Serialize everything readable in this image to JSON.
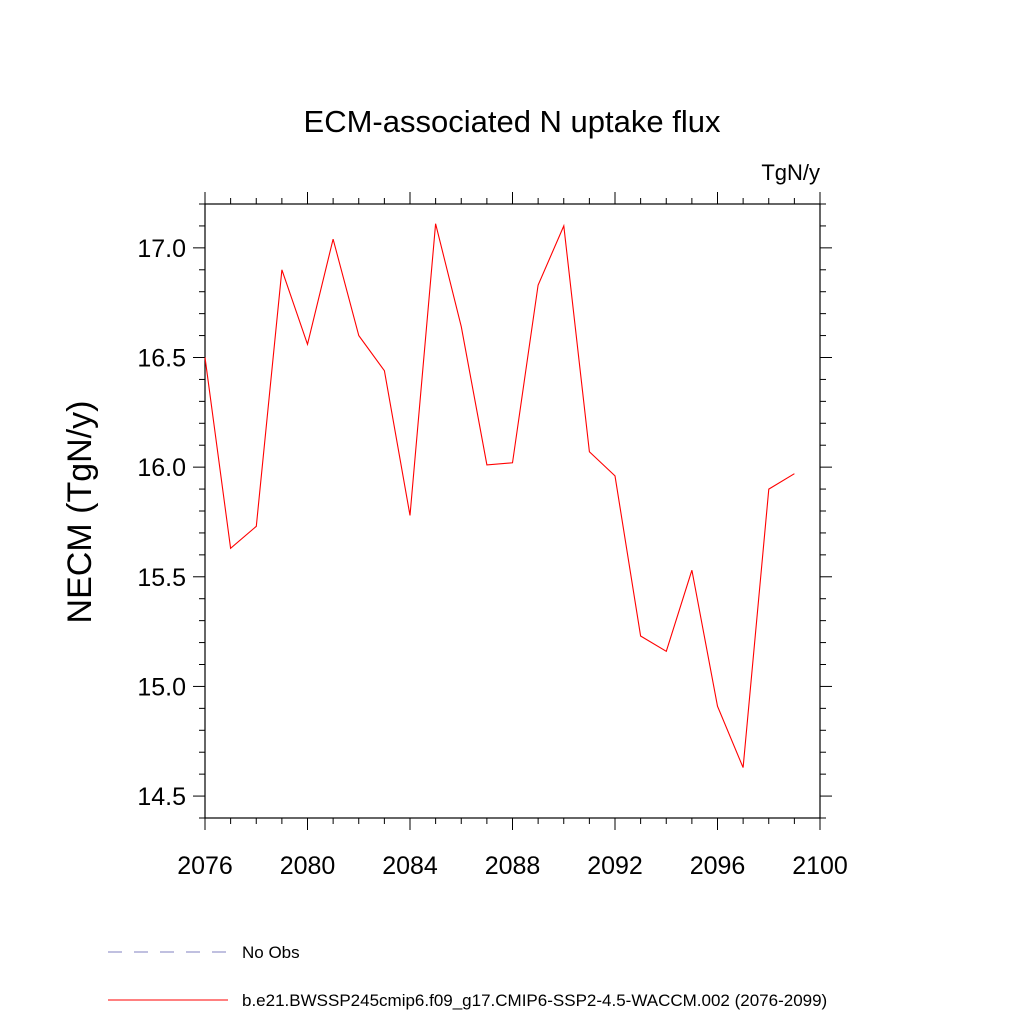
{
  "chart_data": {
    "type": "line",
    "title": "ECM-associated N uptake flux",
    "units_label": "TgN/y",
    "ylabel": "NECM  (TgN/y)",
    "xlabel": "",
    "xlim": [
      2076,
      2100
    ],
    "ylim": [
      14.4,
      17.2
    ],
    "x_ticks": [
      2076,
      2080,
      2084,
      2088,
      2092,
      2096,
      2100
    ],
    "y_ticks": [
      14.5,
      15.0,
      15.5,
      16.0,
      16.5,
      17.0
    ],
    "y_tick_labels": [
      "14.5",
      "15.0",
      "15.5",
      "16.0",
      "16.5",
      "17.0"
    ],
    "grid": false,
    "series": [
      {
        "name": "b.e21.BWSSP245cmip6.f09_g17.CMIP6-SSP2-4.5-WACCM.002 (2076-2099)",
        "color": "#ff0000",
        "x": [
          2076,
          2077,
          2078,
          2079,
          2080,
          2081,
          2082,
          2083,
          2084,
          2085,
          2086,
          2087,
          2088,
          2089,
          2090,
          2091,
          2092,
          2093,
          2094,
          2095,
          2096,
          2097,
          2098,
          2099
        ],
        "values": [
          16.5,
          15.63,
          15.73,
          16.9,
          16.56,
          17.04,
          16.6,
          16.44,
          15.78,
          17.11,
          16.64,
          16.01,
          16.02,
          16.83,
          17.1,
          16.07,
          15.96,
          15.23,
          15.16,
          15.53,
          14.91,
          14.63,
          15.9,
          15.97
        ]
      }
    ],
    "legend": [
      {
        "label": "No Obs",
        "style": "dashed",
        "color": "#8080c0"
      },
      {
        "label": "b.e21.BWSSP245cmip6.f09_g17.CMIP6-SSP2-4.5-WACCM.002 (2076-2099)",
        "style": "solid",
        "color": "#ff0000"
      }
    ],
    "legend_position": "bottom-left"
  }
}
